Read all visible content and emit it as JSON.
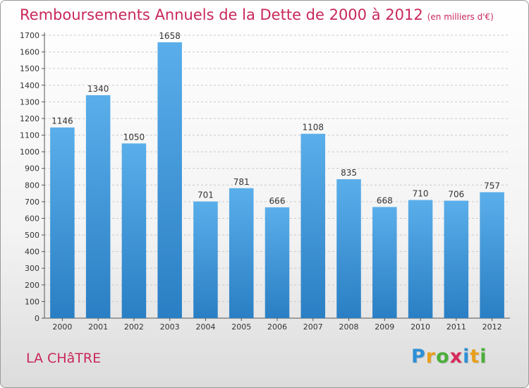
{
  "chart_data": {
    "type": "bar",
    "title": "Remboursements Annuels de la Dette de 2000 à 2012",
    "subtitle": "(en milliers d'€)",
    "categories": [
      "2000",
      "2001",
      "2002",
      "2003",
      "2004",
      "2005",
      "2006",
      "2007",
      "2008",
      "2009",
      "2010",
      "2011",
      "2012"
    ],
    "values": [
      1146,
      1340,
      1050,
      1658,
      701,
      781,
      666,
      1108,
      835,
      668,
      710,
      706,
      757
    ],
    "ylim": [
      0,
      1700
    ],
    "yticks": [
      0,
      100,
      200,
      300,
      400,
      500,
      600,
      700,
      800,
      900,
      1000,
      1100,
      1200,
      1300,
      1400,
      1500,
      1600,
      1700
    ],
    "grid": true,
    "bar_color_top": "#5aaeea",
    "bar_color_bottom": "#2a7fc4"
  },
  "location": "LA CHâTRE",
  "logo": {
    "letters": [
      "P",
      "r",
      "o",
      "x",
      "i",
      "t",
      "i"
    ],
    "colors": [
      "#2d8fd6",
      "#e8a01c",
      "#4cae3a",
      "#d62a5a",
      "#2d8fd6",
      "#e8a01c",
      "#4cae3a"
    ]
  }
}
